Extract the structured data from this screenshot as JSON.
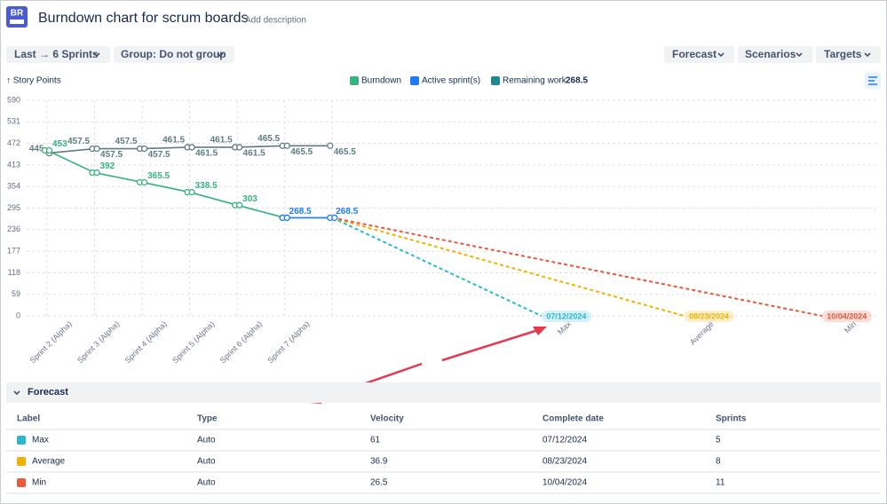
{
  "header": {
    "logo": "BR",
    "title": "Burndown chart for scrum boards",
    "description_link": "Add description"
  },
  "toolbar": {
    "left": [
      "Last → 6 Sprints",
      "Group: Do not group"
    ],
    "right": [
      "Forecast",
      "Scenarios",
      "Targets"
    ]
  },
  "chart_data": {
    "type": "line",
    "y_axis_label": "↑ Story Points",
    "ylim": [
      0,
      590
    ],
    "yticks": [
      0,
      59,
      118,
      177,
      236,
      295,
      354,
      413,
      472,
      531,
      590
    ],
    "xlim": [
      0,
      17.5
    ],
    "xticks": [
      {
        "value": 0.5,
        "label": "Sprint 2 (Alpha)"
      },
      {
        "value": 1.5,
        "label": "Sprint 3 (Alpha)"
      },
      {
        "value": 2.5,
        "label": "Sprint 4 (Alpha)"
      },
      {
        "value": 3.5,
        "label": "Sprint 5 (Alpha)"
      },
      {
        "value": 4.5,
        "label": "Sprint 6 (Alpha)"
      },
      {
        "value": 5.5,
        "label": "Sprint 7 (Alpha)"
      },
      {
        "value": 11,
        "label": "Max"
      },
      {
        "value": 14,
        "label": "Average"
      },
      {
        "value": 17,
        "label": "Min"
      }
    ],
    "grid": true,
    "scope": {
      "color": "#5f7c80",
      "x": [
        0,
        1,
        1,
        2,
        2,
        3,
        3,
        4,
        4,
        5,
        5,
        6
      ],
      "values": [
        445,
        457.5,
        457.5,
        457.5,
        457.5,
        461.5,
        461.5,
        461.5,
        461.5,
        465.5,
        465.5,
        465.5
      ]
    },
    "series": [
      {
        "name": "Burndown",
        "color": "#36b37e",
        "x": [
          0,
          1,
          2,
          3,
          4,
          5
        ],
        "values": [
          453,
          392,
          365.5,
          338.5,
          303,
          268.5
        ]
      },
      {
        "name": "Active sprint(s)",
        "color": "#1d7afc",
        "x": [
          5,
          6
        ],
        "values": [
          268.5,
          268.5
        ]
      }
    ],
    "remaining_work": {
      "name": "Remaining work",
      "color": "#1f8a8f",
      "value": 268.5
    },
    "forecasts": [
      {
        "name": "Max",
        "color": "#2bb9ce",
        "date": "07/12/2024",
        "x": [
          6,
          10.4
        ],
        "values": [
          268.5,
          0
        ]
      },
      {
        "name": "Average",
        "color": "#f0b400",
        "date": "08/23/2024",
        "x": [
          6,
          13.4
        ],
        "values": [
          268.5,
          0
        ]
      },
      {
        "name": "Min",
        "color": "#e8593e",
        "date": "10/04/2024",
        "x": [
          6,
          16.3
        ],
        "values": [
          268.5,
          0
        ]
      }
    ]
  },
  "forecast_table": {
    "title": "Forecast",
    "columns": [
      "Label",
      "Type",
      "Velocity",
      "Complete date",
      "Sprints"
    ],
    "rows": [
      {
        "color": "#2bb9ce",
        "cells": [
          "Max",
          "Auto",
          61,
          "07/12/2024",
          5
        ]
      },
      {
        "color": "#f0b400",
        "cells": [
          "Average",
          "Auto",
          36.9,
          "08/23/2024",
          8
        ]
      },
      {
        "color": "#e8593e",
        "cells": [
          "Min",
          "Auto",
          26.5,
          "10/04/2024",
          11
        ]
      }
    ]
  }
}
